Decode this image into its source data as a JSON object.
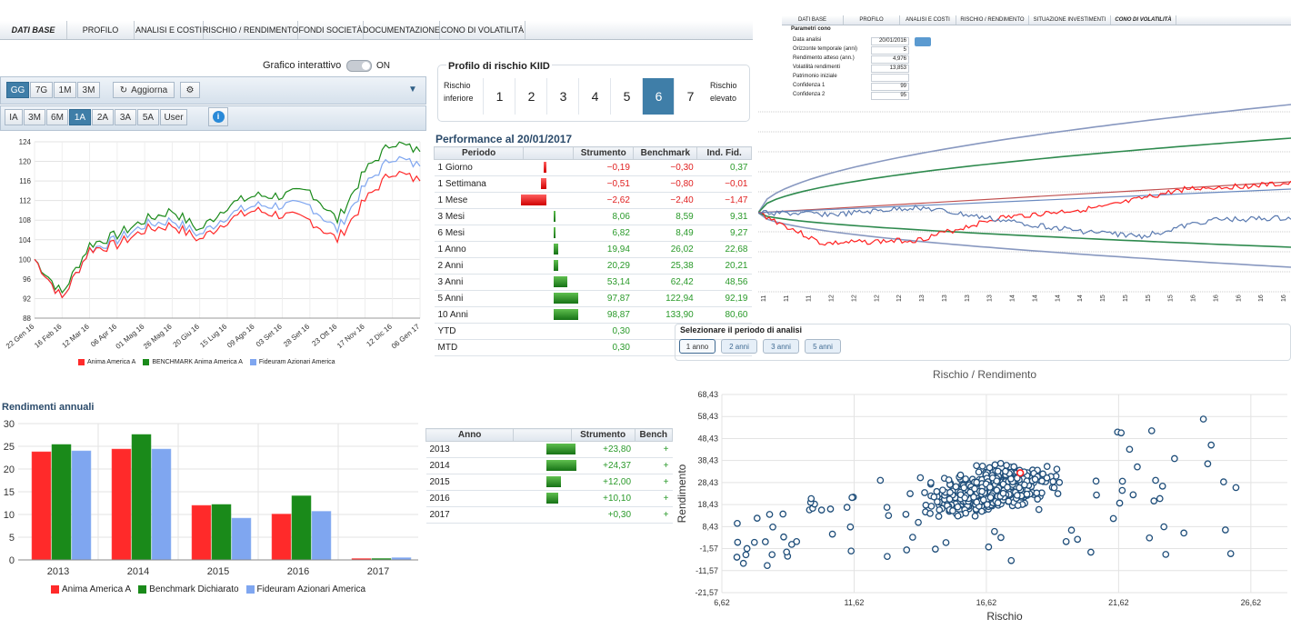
{
  "main_tabs": [
    "DATI BASE",
    "PROFILO",
    "ANALISI E COSTI",
    "RISCHIO / RENDIMENTO",
    "FONDI SOCIETÀ",
    "DOCUMENTAZIONE",
    "CONO DI VOLATILITÀ"
  ],
  "cone_tabs": [
    "DATI BASE",
    "PROFILO",
    "ANALISI E COSTI",
    "RISCHIO / RENDIMENTO",
    "SITUAZIONE INVESTIMENTI",
    "CONO DI VOLATILITÀ"
  ],
  "interactive": {
    "label": "Grafico interattivo",
    "state": "ON"
  },
  "period_buttons": [
    "GG",
    "7G",
    "1M",
    "3M"
  ],
  "refresh_label": "Aggiorna",
  "range_buttons": [
    "IA",
    "3M",
    "6M",
    "1A",
    "2A",
    "3A",
    "5A",
    "User"
  ],
  "selected_period": "GG",
  "selected_range": "1A",
  "colors": {
    "red": "#ff2a2a",
    "green": "#1a8a1a",
    "blue": "#7fa6f0",
    "accent": "#3f7ea8",
    "title": "#2a4a6a"
  },
  "kiid": {
    "title": "Profilo di rischio KIID",
    "low": "Rischio inferiore",
    "high": "Rischio elevato",
    "levels": [
      "1",
      "2",
      "3",
      "4",
      "5",
      "6",
      "7"
    ],
    "selected": "6"
  },
  "performance": {
    "title": "Performance al 20/01/2017",
    "headers": [
      "Periodo",
      "",
      "Strumento",
      "Benchmark",
      "Ind. Fid."
    ],
    "rows": [
      {
        "period": "1 Giorno",
        "s": "-0,19",
        "b": "-0,30",
        "i": "0,37",
        "bar": -0.19
      },
      {
        "period": "1 Settimana",
        "s": "-0,51",
        "b": "-0,80",
        "i": "-0,01",
        "bar": -0.51
      },
      {
        "period": "1 Mese",
        "s": "-2,62",
        "b": "-2,40",
        "i": "-1,47",
        "bar": -2.62
      },
      {
        "period": "3 Mesi",
        "s": "8,06",
        "b": "8,59",
        "i": "9,31",
        "bar": 8.06
      },
      {
        "period": "6 Mesi",
        "s": "6,82",
        "b": "8,49",
        "i": "9,27",
        "bar": 6.82
      },
      {
        "period": "1 Anno",
        "s": "19,94",
        "b": "26,02",
        "i": "22,68",
        "bar": 19.94
      },
      {
        "period": "2 Anni",
        "s": "20,29",
        "b": "25,38",
        "i": "20,21",
        "bar": 20.29
      },
      {
        "period": "3 Anni",
        "s": "53,14",
        "b": "62,42",
        "i": "48,56",
        "bar": 53.14
      },
      {
        "period": "5 Anni",
        "s": "97,87",
        "b": "122,94",
        "i": "92,19",
        "bar": 97.87
      },
      {
        "period": "10 Anni",
        "s": "98,87",
        "b": "133,90",
        "i": "80,60",
        "bar": 98.87
      },
      {
        "period": "YTD",
        "s": "0,30",
        "b": "",
        "i": "",
        "bar": 0
      },
      {
        "period": "MTD",
        "s": "0,30",
        "b": "",
        "i": "",
        "bar": 0
      }
    ]
  },
  "annual_table": {
    "headers": [
      "Anno",
      "",
      "Strumento",
      "Bench"
    ],
    "rows": [
      {
        "year": "2013",
        "s": "+23,80",
        "bar": 23.8
      },
      {
        "year": "2014",
        "s": "+24,37",
        "bar": 24.37
      },
      {
        "year": "2015",
        "s": "+12,00",
        "bar": 12.0
      },
      {
        "year": "2016",
        "s": "+10,10",
        "bar": 10.1
      },
      {
        "year": "2017",
        "s": "+0,30",
        "bar": 0.3
      }
    ]
  },
  "line_legend": [
    "Anima America A",
    "BENCHMARK Anima America A",
    "Fideuram Azionari America"
  ],
  "cone": {
    "title": "Parametri cono",
    "params": [
      {
        "label": "Data analisi",
        "value": "20/01/2016"
      },
      {
        "label": "Orizzonte temporale (anni)",
        "value": "5"
      },
      {
        "label": "Rendimento atteso (ann.)",
        "value": "4,976"
      },
      {
        "label": "Volatilità rendimenti",
        "value": "13,853"
      },
      {
        "label": "Patrimonio iniziale",
        "value": ""
      },
      {
        "label": "Confidenza 1",
        "value": "99"
      },
      {
        "label": "Confidenza 2",
        "value": "95"
      }
    ],
    "x_ticks": [
      "11",
      "11",
      "11",
      "12",
      "12",
      "12",
      "12",
      "13",
      "13",
      "13",
      "13",
      "14",
      "14",
      "14",
      "14",
      "15",
      "15",
      "15",
      "15",
      "16",
      "16",
      "16",
      "16",
      "16"
    ]
  },
  "analysis_period": {
    "title": "Selezionare il periodo di analisi",
    "buttons": [
      "1 anno",
      "2 anni",
      "3 anni",
      "5 anni"
    ],
    "selected": "1 anno"
  },
  "chart_data": [
    {
      "type": "line",
      "x": [
        "22 Gen 16",
        "16 Feb 16",
        "12 Mar 16",
        "06 Apr 16",
        "01 Mag 16",
        "26 Mag 16",
        "20 Giu 16",
        "15 Lug 16",
        "09 Ago 16",
        "03 Set 16",
        "28 Set 16",
        "23 Ott 16",
        "17 Nov 16",
        "12 Dic 16",
        "06 Gen 17"
      ],
      "ylim": [
        88,
        124
      ],
      "yticks": [
        "88",
        "92",
        "96",
        "100",
        "104",
        "108",
        "112",
        "116",
        "120",
        "124"
      ],
      "series": [
        {
          "name": "Anima America A",
          "values": [
            100,
            92,
            102,
            103,
            106,
            107,
            104,
            108,
            110,
            109,
            108,
            104,
            112,
            118,
            116
          ]
        },
        {
          "name": "BENCHMARK Anima America A",
          "values": [
            100,
            93,
            103,
            105,
            108,
            110,
            106,
            111,
            113,
            113,
            114,
            108,
            118,
            124,
            122
          ]
        },
        {
          "name": "Fideuram Azionari America",
          "values": [
            100,
            92,
            102,
            104,
            107,
            108,
            105,
            109,
            111,
            111,
            111,
            106,
            115,
            121,
            119
          ]
        }
      ]
    },
    {
      "type": "bar",
      "title": "Rendimenti annuali",
      "categories": [
        "2013",
        "2014",
        "2015",
        "2016",
        "2017"
      ],
      "ylim": [
        0,
        30
      ],
      "yticks": [
        "0",
        "5",
        "10",
        "15",
        "20",
        "25",
        "30"
      ],
      "series": [
        {
          "name": "Anima America A",
          "values": [
            23.8,
            24.4,
            12.0,
            10.1,
            0.3
          ]
        },
        {
          "name": "Benchmark Dichiarato",
          "values": [
            25.4,
            27.6,
            12.2,
            14.1,
            0.3
          ]
        },
        {
          "name": "Fideuram Azionari America",
          "values": [
            24.0,
            24.4,
            9.2,
            10.7,
            0.5
          ]
        }
      ]
    },
    {
      "type": "scatter",
      "title": "Rischio / Rendimento",
      "xlabel": "Rischio",
      "ylabel": "Rendimento",
      "xlim": [
        6.62,
        28.0
      ],
      "ylim": [
        -21.57,
        68.43
      ],
      "xticks": [
        "6,62",
        "11,62",
        "16,62",
        "21,62",
        "26,62"
      ],
      "yticks": [
        "-21,57",
        "-11,57",
        "-1,57",
        "8,43",
        "18,43",
        "28,43",
        "38,43",
        "48,43",
        "58,43",
        "68,43"
      ],
      "highlight": [
        17.9,
        32.8
      ]
    }
  ]
}
